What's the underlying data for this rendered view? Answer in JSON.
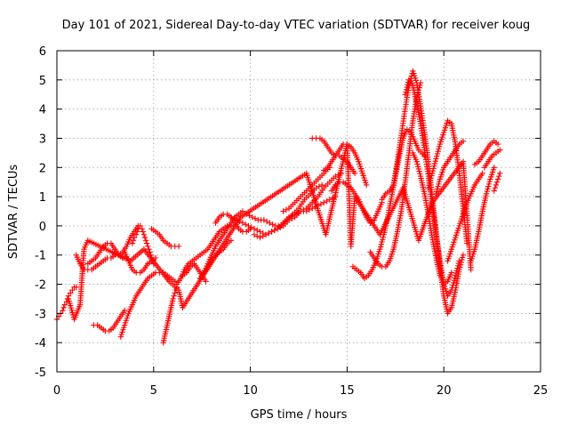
{
  "chart_data": {
    "type": "scatter",
    "title": "Day 101 of 2021, Sidereal Day-to-day VTEC variation (SDTVAR) for receiver koug",
    "xlabel": "GPS time / hours",
    "ylabel": "SDTVAR / TECUs",
    "xlim": [
      0,
      25
    ],
    "ylim": [
      -5,
      6
    ],
    "xticks": [
      0,
      5,
      10,
      15,
      20,
      25
    ],
    "yticks": [
      -5,
      -4,
      -3,
      -2,
      -1,
      0,
      1,
      2,
      3,
      4,
      5,
      6
    ],
    "grid": true,
    "legend": "none",
    "marker": "plus",
    "color": "#ff0000",
    "series": [
      {
        "x": [
          0.0,
          0.1,
          0.2,
          0.3,
          0.4,
          0.5,
          0.6,
          0.7,
          0.8,
          0.9,
          1.0
        ],
        "y": [
          -3.2,
          -3.1,
          -3.0,
          -2.9,
          -2.7,
          -2.6,
          -2.4,
          -2.3,
          -2.2,
          -2.1,
          -2.1
        ]
      },
      {
        "x": [
          1.0,
          1.2,
          1.4,
          1.6,
          1.8,
          2.0,
          2.2,
          2.4,
          2.6,
          2.8,
          3.0,
          3.2,
          3.4,
          3.6,
          3.8,
          4.0,
          4.2,
          4.3
        ],
        "y": [
          -1.0,
          -1.3,
          -1.5,
          -1.5,
          -1.5,
          -1.4,
          -1.3,
          -1.2,
          -1.1,
          -1.1,
          -1.0,
          -1.0,
          -0.9,
          -0.7,
          -0.4,
          -0.2,
          0.0,
          0.0
        ]
      },
      {
        "x": [
          1.6,
          1.8,
          2.0,
          2.2,
          2.4,
          2.6,
          2.8,
          3.0,
          3.2,
          3.4
        ],
        "y": [
          -1.3,
          -1.2,
          -1.1,
          -0.9,
          -0.7,
          -0.6,
          -0.6,
          -0.8,
          -1.0,
          -1.1
        ]
      },
      {
        "x": [
          1.9,
          2.1,
          2.3,
          2.5,
          2.7,
          2.9,
          3.1,
          3.3,
          3.5
        ],
        "y": [
          -3.4,
          -3.4,
          -3.5,
          -3.6,
          -3.6,
          -3.5,
          -3.3,
          -3.1,
          -2.9
        ]
      },
      {
        "x": [
          3.3,
          3.5,
          3.7,
          3.9,
          4.1,
          4.3,
          4.5,
          4.7,
          4.9,
          5.1,
          5.3,
          5.5,
          5.7,
          5.9,
          6.1
        ],
        "y": [
          -3.8,
          -3.4,
          -3.0,
          -2.7,
          -2.4,
          -2.2,
          -2.0,
          -1.8,
          -1.7,
          -1.6,
          -1.6,
          -1.6,
          -1.7,
          -1.8,
          -1.9
        ]
      },
      {
        "x": [
          3.5,
          3.7,
          3.9,
          4.1,
          4.3,
          4.5,
          4.7,
          4.9,
          5.1
        ],
        "y": [
          -0.9,
          -1.2,
          -1.5,
          -1.6,
          -1.6,
          -1.5,
          -1.3,
          -1.2,
          -1.1
        ]
      },
      {
        "x": [
          3.9,
          4.0,
          4.1,
          4.2,
          4.3,
          4.4,
          4.5,
          4.6,
          4.7,
          4.8,
          4.9,
          5.0
        ],
        "y": [
          -0.6,
          -0.4,
          -0.3,
          -0.1,
          0.0,
          -0.1,
          -0.3,
          -0.5,
          -0.7,
          -0.9,
          -1.1,
          -1.3
        ]
      },
      {
        "x": [
          4.9,
          5.1,
          5.3,
          5.5,
          5.7,
          5.9,
          6.1,
          6.3
        ],
        "y": [
          -0.1,
          -0.2,
          -0.3,
          -0.5,
          -0.6,
          -0.7,
          -0.7,
          -0.7
        ]
      },
      {
        "x": [
          5.5,
          5.6,
          5.7,
          5.8,
          5.9,
          6.0,
          6.1,
          6.2
        ],
        "y": [
          -4.0,
          -3.7,
          -3.4,
          -3.1,
          -2.8,
          -2.5,
          -2.3,
          -2.1
        ]
      },
      {
        "x": [
          6.2,
          6.4,
          6.6,
          6.8,
          7.0,
          7.2,
          7.4,
          7.6,
          7.8,
          8.0,
          8.2,
          8.4,
          8.6,
          8.8,
          9.0
        ],
        "y": [
          -2.0,
          -1.8,
          -1.5,
          -1.3,
          -1.2,
          -1.1,
          -1.0,
          -0.9,
          -0.8,
          -0.6,
          -0.4,
          -0.2,
          -0.1,
          0.0,
          0.0
        ]
      },
      {
        "x": [
          6.5,
          6.7,
          6.9,
          7.1,
          7.3,
          7.5,
          7.7
        ],
        "y": [
          -1.7,
          -1.6,
          -1.4,
          -1.3,
          -1.5,
          -1.7,
          -1.9
        ]
      },
      {
        "x": [
          7.4,
          7.6,
          7.8,
          8.0,
          8.2,
          8.4,
          8.6,
          8.8,
          9.0,
          9.2,
          9.4,
          9.6
        ],
        "y": [
          -1.8,
          -1.6,
          -1.3,
          -1.0,
          -0.7,
          -0.5,
          -0.3,
          -0.1,
          0.1,
          0.3,
          0.4,
          0.5
        ]
      },
      {
        "x": [
          7.6,
          7.8,
          8.0,
          8.2,
          8.4,
          8.6,
          8.8,
          9.0
        ],
        "y": [
          -1.6,
          -1.4,
          -1.2,
          -1.0,
          -0.9,
          -0.8,
          -0.6,
          -0.5
        ]
      },
      {
        "x": [
          8.2,
          8.4,
          8.6,
          8.8,
          9.0,
          9.2,
          9.4,
          9.6,
          9.8,
          10.0
        ],
        "y": [
          0.1,
          0.3,
          0.4,
          0.4,
          0.3,
          0.1,
          -0.1,
          -0.2,
          -0.2,
          -0.1
        ]
      },
      {
        "x": [
          9.0,
          9.3,
          9.6,
          9.9,
          10.2,
          10.5,
          10.8,
          11.1,
          11.4,
          11.7,
          12.0,
          12.3,
          12.6,
          12.9,
          13.2,
          13.5,
          13.8,
          14.1,
          14.4,
          14.7
        ],
        "y": [
          0.3,
          0.2,
          0.1,
          0.0,
          -0.1,
          -0.2,
          -0.3,
          -0.2,
          -0.1,
          0.0,
          0.2,
          0.3,
          0.5,
          0.6,
          0.8,
          1.0,
          1.3,
          1.5,
          1.7,
          1.8
        ]
      },
      {
        "x": [
          9.8,
          10.1,
          10.4,
          10.7,
          11.0,
          11.3,
          11.6,
          11.9,
          12.2,
          12.5,
          12.8,
          13.1,
          13.4,
          13.7
        ],
        "y": [
          0.4,
          0.3,
          0.2,
          0.2,
          0.1,
          0.0,
          0.0,
          0.2,
          0.4,
          0.6,
          0.9,
          1.1,
          1.3,
          1.4
        ]
      },
      {
        "x": [
          10.2,
          10.5,
          10.8,
          11.1,
          11.4,
          11.7,
          12.0,
          12.3,
          12.6,
          12.9,
          13.2,
          13.5,
          13.8,
          14.1,
          14.4
        ],
        "y": [
          -0.3,
          -0.4,
          -0.3,
          -0.2,
          -0.1,
          0.1,
          0.3,
          0.4,
          0.5,
          0.5,
          0.6,
          0.7,
          0.8,
          0.9,
          1.0
        ]
      },
      {
        "x": [
          11.7,
          12.0,
          12.3,
          12.6,
          12.9,
          13.2,
          13.5,
          13.8,
          14.1
        ],
        "y": [
          0.5,
          0.6,
          0.8,
          1.0,
          1.2,
          1.4,
          1.6,
          1.8,
          2.0
        ]
      },
      {
        "x": [
          13.2,
          13.4,
          13.6,
          13.8,
          14.0,
          14.2,
          14.4,
          14.6,
          14.8,
          15.0,
          15.2,
          15.4
        ],
        "y": [
          3.0,
          3.0,
          3.0,
          2.9,
          2.7,
          2.5,
          2.4,
          2.4,
          2.3,
          2.2,
          2.0,
          1.8
        ]
      },
      {
        "x": [
          13.8,
          14.0,
          14.2,
          14.4,
          14.6,
          14.8,
          15.0,
          15.2,
          15.4,
          15.6,
          15.8,
          16.0
        ],
        "y": [
          1.9,
          2.0,
          2.2,
          2.4,
          2.6,
          2.8,
          2.8,
          2.7,
          2.5,
          2.2,
          1.8,
          1.4
        ]
      },
      {
        "x": [
          14.2,
          14.4,
          14.6,
          14.8,
          15.0,
          15.2,
          15.4,
          15.6,
          15.8,
          16.0,
          16.2,
          16.4,
          16.6,
          16.8
        ],
        "y": [
          1.2,
          1.4,
          1.5,
          1.5,
          1.4,
          1.3,
          1.1,
          0.9,
          0.6,
          0.3,
          0.1,
          0.2,
          0.5,
          0.8
        ]
      },
      {
        "x": [
          15.3,
          15.5,
          15.7,
          15.9,
          16.1,
          16.3,
          16.5,
          16.7,
          16.9,
          17.1,
          17.3,
          17.5,
          17.7,
          17.9,
          18.1,
          18.3,
          18.5,
          18.7,
          19.0
        ],
        "y": [
          -1.4,
          -1.5,
          -1.6,
          -1.8,
          -1.7,
          -1.5,
          -1.2,
          -0.8,
          -0.3,
          0.3,
          1.0,
          1.7,
          2.4,
          3.0,
          3.3,
          3.2,
          2.9,
          2.6,
          2.4
        ]
      },
      {
        "x": [
          16.2,
          16.4,
          16.6,
          16.8,
          17.0,
          17.2,
          17.4,
          17.6,
          17.8,
          18.0,
          18.2,
          18.4,
          18.6,
          18.8
        ],
        "y": [
          -0.9,
          -1.1,
          -1.3,
          -1.4,
          -1.4,
          -1.2,
          -0.8,
          -0.2,
          0.5,
          1.5,
          2.5,
          3.6,
          4.4,
          4.9
        ]
      },
      {
        "x": [
          16.8,
          17.0,
          17.2,
          17.4,
          17.6,
          17.8,
          18.0,
          18.2,
          18.4,
          18.6,
          18.8,
          19.0,
          19.2,
          19.4,
          19.6,
          19.8,
          20.0,
          20.2,
          20.4,
          20.6,
          20.8,
          21.0
        ],
        "y": [
          0.9,
          1.1,
          1.2,
          1.4,
          2.2,
          3.1,
          4.0,
          4.8,
          5.3,
          4.9,
          4.1,
          3.2,
          2.2,
          1.0,
          -0.2,
          -1.4,
          -2.4,
          -3.0,
          -2.8,
          -2.2,
          -1.5,
          -1.0
        ]
      },
      {
        "x": [
          18.0,
          18.2,
          18.4,
          18.6,
          18.8,
          19.0,
          19.2,
          19.4,
          19.6,
          19.8,
          20.0,
          20.2,
          20.4,
          20.6,
          20.8
        ],
        "y": [
          4.5,
          5.0,
          4.8,
          4.2,
          3.5,
          2.6,
          1.7,
          0.7,
          -0.3,
          -1.2,
          -2.0,
          -2.4,
          -2.2,
          -1.7,
          -1.2
        ]
      },
      {
        "x": [
          18.4,
          18.6,
          18.8,
          19.0,
          19.2,
          19.4,
          19.6,
          19.8,
          20.0,
          20.2,
          20.4
        ],
        "y": [
          2.5,
          2.2,
          1.7,
          1.1,
          0.4,
          -0.4,
          -1.1,
          -1.7,
          -2.0,
          -1.9,
          -1.6
        ]
      },
      {
        "x": [
          19.2,
          19.4,
          19.6,
          19.8,
          20.0,
          20.2,
          20.4,
          20.6,
          20.8,
          21.0,
          21.2
        ],
        "y": [
          1.3,
          1.8,
          2.3,
          2.8,
          3.2,
          3.6,
          3.5,
          2.8,
          1.8,
          0.6,
          -0.6
        ]
      },
      {
        "x": [
          19.6,
          19.8,
          20.0,
          20.2,
          20.4,
          20.6,
          20.8,
          21.0
        ],
        "y": [
          1.1,
          1.6,
          2.0,
          2.2,
          2.4,
          2.6,
          2.8,
          2.9
        ]
      },
      {
        "x": [
          20.2,
          20.4,
          20.6,
          20.8,
          21.0,
          21.2,
          21.4,
          21.6,
          21.8,
          22.0
        ],
        "y": [
          -1.2,
          -0.8,
          -0.4,
          0.0,
          0.4,
          0.8,
          1.1,
          1.4,
          1.6,
          1.8
        ]
      },
      {
        "x": [
          21.4,
          21.6,
          21.8,
          22.0,
          22.2,
          22.4,
          22.6
        ],
        "y": [
          -1.2,
          -0.8,
          -0.2,
          0.5,
          1.1,
          1.6,
          2.0
        ]
      },
      {
        "x": [
          21.6,
          21.8,
          22.0,
          22.2,
          22.4,
          22.6,
          22.8
        ],
        "y": [
          2.1,
          2.2,
          2.4,
          2.6,
          2.8,
          2.9,
          2.8
        ]
      },
      {
        "x": [
          22.1,
          22.3,
          22.5,
          22.7,
          22.9
        ],
        "y": [
          2.0,
          2.2,
          2.4,
          2.5,
          2.6
        ]
      },
      {
        "x": [
          22.6,
          22.7,
          22.8,
          22.9
        ],
        "y": [
          1.2,
          1.4,
          1.6,
          1.8
        ]
      },
      {
        "x": [
          0.6,
          0.9,
          1.2,
          1.4,
          1.6,
          3.8,
          4.5,
          5.8,
          6.3,
          6.5,
          9.5,
          12.9,
          13.9,
          15.0,
          15.2,
          15.4,
          16.7,
          17.9,
          18.7,
          19.4,
          21.0,
          21.4
        ],
        "y": [
          -2.5,
          -3.2,
          -2.7,
          -0.8,
          -0.5,
          -1.2,
          -0.8,
          -1.9,
          -2.2,
          -2.8,
          0.3,
          1.8,
          -0.3,
          2.8,
          -0.7,
          1.0,
          -0.3,
          1.3,
          -0.5,
          0.8,
          2.2,
          -1.5
        ]
      }
    ]
  }
}
